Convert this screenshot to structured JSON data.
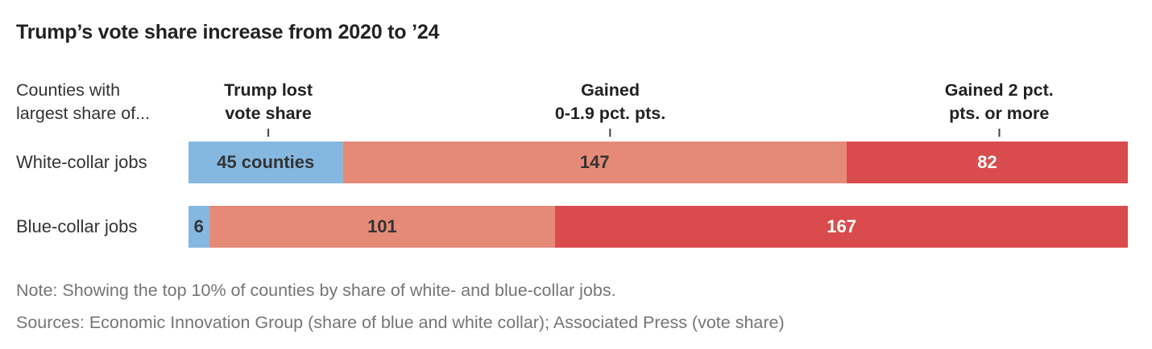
{
  "page": {
    "title": "Trump’s vote share increase from 2020 to ’24",
    "axis_intro": {
      "line1": "Counties with",
      "line2": "largest share of..."
    },
    "col_headers": [
      {
        "line1": "Trump lost",
        "line2": "vote share"
      },
      {
        "line1": "Gained",
        "line2": "0-1.9 pct. pts."
      },
      {
        "line1": "Gained 2 pct.",
        "line2": "pts. or more"
      }
    ],
    "rows": [
      {
        "label": "White-collar jobs",
        "segments": [
          {
            "text": "45 counties",
            "value": 45
          },
          {
            "text": "147",
            "value": 147
          },
          {
            "text": "82",
            "value": 82
          }
        ]
      },
      {
        "label": "Blue-collar jobs",
        "segments": [
          {
            "text": "6",
            "value": 6
          },
          {
            "text": "101",
            "value": 101
          },
          {
            "text": "167",
            "value": 167
          }
        ]
      }
    ],
    "note": "Note: Showing the top 10% of counties by share of white- and blue-collar jobs.",
    "sources": "Sources: Economic Innovation Group (share of blue and white collar); Associated Press (vote share)"
  },
  "chart_data": {
    "type": "bar",
    "subtype": "horizontal-stacked",
    "title": "Trump’s vote share increase from 2020 to ’24",
    "categories": [
      "White-collar jobs",
      "Blue-collar jobs"
    ],
    "series": [
      {
        "name": "Trump lost vote share",
        "color": "#85b8e1",
        "values": [
          45,
          6
        ]
      },
      {
        "name": "Gained 0-1.9 pct. pts.",
        "color": "#e68a78",
        "values": [
          147,
          101
        ]
      },
      {
        "name": "Gained 2 pct. pts. or more",
        "color": "#d94b4d",
        "values": [
          82,
          167
        ]
      }
    ],
    "value_unit": "counties",
    "totals": [
      274,
      274
    ],
    "xlabel": "",
    "ylabel": "Counties with largest share of...",
    "legend_position": "column headers above bars with tick marks",
    "grid": false,
    "note": "Note: Showing the top 10% of counties by share of white- and blue-collar jobs.",
    "sources": "Sources: Economic Innovation Group (share of blue and white collar); Associated Press (vote share)",
    "colors": {
      "lost": "#85b8e1",
      "gained_small": "#e68a78",
      "gained_large": "#d94b4d",
      "text_dark": "#333333",
      "text_notes": "#757575"
    }
  }
}
